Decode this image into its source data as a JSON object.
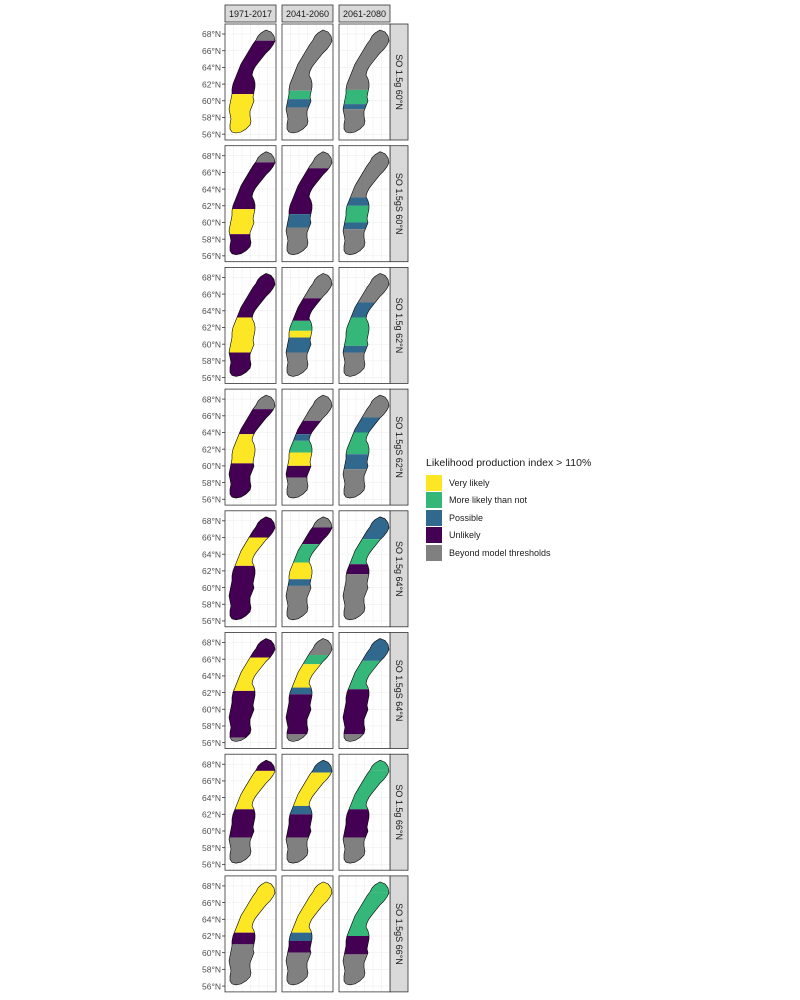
{
  "colors": {
    "very_likely": "#FDE725",
    "more_likely": "#35B779",
    "possible": "#31688E",
    "unlikely": "#440154",
    "beyond": "#808080"
  },
  "legend": {
    "title": "Likelihood production index > 110%",
    "items": [
      {
        "label": "Very likely",
        "color": "#FDE725"
      },
      {
        "label": "More likely than not",
        "color": "#35B779"
      },
      {
        "label": "Possible",
        "color": "#31688E"
      },
      {
        "label": "Unlikely",
        "color": "#440154"
      },
      {
        "label": "Beyond model thresholds",
        "color": "#808080"
      }
    ]
  },
  "chart_data": {
    "type": "map",
    "columns": [
      "1971-2017",
      "2041-2060",
      "2061-2080"
    ],
    "rows": [
      "SO 1.5g 60°N",
      "SO 1.5gS 60°N",
      "SO 1.5g 62°N",
      "SO 1.5gS 62°N",
      "SO 1.5g 64°N",
      "SO 1.5gS 64°N",
      "SO 1.5g 66°N",
      "SO 1.5gS 66°N"
    ],
    "y_tick_labels": [
      "68°N",
      "66°N",
      "64°N",
      "62°N",
      "60°N",
      "58°N",
      "56°N"
    ],
    "y_tick_values": [
      68,
      66,
      64,
      62,
      60,
      58,
      56
    ],
    "lat_range": [
      55.3,
      69.2
    ],
    "categories": [
      "Very likely",
      "More likely than not",
      "Possible",
      "Unlikely",
      "Beyond model thresholds"
    ],
    "panels": [
      [
        {
          "bands": [
            [
              67.2,
              "beyond"
            ],
            [
              60.8,
              "unlikely"
            ],
            [
              56,
              "very_likely"
            ]
          ]
        },
        {
          "bands": [
            [
              61.2,
              "beyond"
            ],
            [
              60.2,
              "more_likely"
            ],
            [
              59.2,
              "possible"
            ],
            [
              56,
              "beyond"
            ]
          ]
        },
        {
          "bands": [
            [
              61.3,
              "beyond"
            ],
            [
              59.6,
              "more_likely"
            ],
            [
              59.0,
              "possible"
            ],
            [
              56,
              "beyond"
            ]
          ]
        }
      ],
      [
        {
          "bands": [
            [
              67.2,
              "beyond"
            ],
            [
              61.6,
              "unlikely"
            ],
            [
              58.6,
              "very_likely"
            ],
            [
              56,
              "unlikely"
            ],
            [
              55.3,
              "very_likely"
            ]
          ]
        },
        {
          "bands": [
            [
              66.5,
              "beyond"
            ],
            [
              61.0,
              "unlikely"
            ],
            [
              59.4,
              "possible"
            ],
            [
              56,
              "beyond"
            ]
          ]
        },
        {
          "bands": [
            [
              63.0,
              "beyond"
            ],
            [
              62.0,
              "possible"
            ],
            [
              60.0,
              "more_likely"
            ],
            [
              59.2,
              "possible"
            ],
            [
              56,
              "beyond"
            ]
          ]
        }
      ],
      [
        {
          "bands": [
            [
              63.2,
              "unlikely"
            ],
            [
              59.0,
              "very_likely"
            ],
            [
              56,
              "unlikely"
            ]
          ]
        },
        {
          "bands": [
            [
              65.5,
              "beyond"
            ],
            [
              62.8,
              "unlikely"
            ],
            [
              61.6,
              "more_likely"
            ],
            [
              60.8,
              "very_likely"
            ],
            [
              59.0,
              "possible"
            ],
            [
              56,
              "beyond"
            ]
          ]
        },
        {
          "bands": [
            [
              65.0,
              "beyond"
            ],
            [
              63.2,
              "possible"
            ],
            [
              59.8,
              "more_likely"
            ],
            [
              59.0,
              "possible"
            ],
            [
              56,
              "beyond"
            ]
          ]
        }
      ],
      [
        {
          "bands": [
            [
              66.8,
              "beyond"
            ],
            [
              63.8,
              "unlikely"
            ],
            [
              60.3,
              "very_likely"
            ],
            [
              56,
              "unlikely"
            ]
          ]
        },
        {
          "bands": [
            [
              65.4,
              "beyond"
            ],
            [
              63.8,
              "unlikely"
            ],
            [
              63.0,
              "possible"
            ],
            [
              61.6,
              "more_likely"
            ],
            [
              60.0,
              "very_likely"
            ],
            [
              58.6,
              "unlikely"
            ],
            [
              56,
              "beyond"
            ]
          ]
        },
        {
          "bands": [
            [
              65.8,
              "beyond"
            ],
            [
              64.0,
              "possible"
            ],
            [
              61.4,
              "more_likely"
            ],
            [
              59.6,
              "possible"
            ],
            [
              56,
              "beyond"
            ]
          ]
        }
      ],
      [
        {
          "bands": [
            [
              66.0,
              "unlikely"
            ],
            [
              62.6,
              "very_likely"
            ],
            [
              56,
              "unlikely"
            ]
          ]
        },
        {
          "bands": [
            [
              67.2,
              "beyond"
            ],
            [
              65.2,
              "unlikely"
            ],
            [
              63.0,
              "more_likely"
            ],
            [
              61.0,
              "very_likely"
            ],
            [
              60.2,
              "possible"
            ],
            [
              56,
              "beyond"
            ]
          ]
        },
        {
          "bands": [
            [
              65.8,
              "possible"
            ],
            [
              62.8,
              "more_likely"
            ],
            [
              61.6,
              "unlikely"
            ],
            [
              56,
              "beyond"
            ]
          ]
        }
      ],
      [
        {
          "bands": [
            [
              66.2,
              "unlikely"
            ],
            [
              62.2,
              "very_likely"
            ],
            [
              56.6,
              "unlikely"
            ],
            [
              55.3,
              "beyond"
            ]
          ]
        },
        {
          "bands": [
            [
              66.5,
              "beyond"
            ],
            [
              65.4,
              "more_likely"
            ],
            [
              62.6,
              "very_likely"
            ],
            [
              61.8,
              "possible"
            ],
            [
              57.0,
              "unlikely"
            ],
            [
              55.3,
              "beyond"
            ]
          ]
        },
        {
          "bands": [
            [
              65.8,
              "possible"
            ],
            [
              62.4,
              "more_likely"
            ],
            [
              57.0,
              "unlikely"
            ],
            [
              55.3,
              "beyond"
            ]
          ]
        }
      ],
      [
        {
          "bands": [
            [
              67.2,
              "unlikely"
            ],
            [
              62.6,
              "very_likely"
            ],
            [
              59.2,
              "unlikely"
            ],
            [
              56,
              "beyond"
            ]
          ]
        },
        {
          "bands": [
            [
              67.0,
              "possible"
            ],
            [
              63.0,
              "very_likely"
            ],
            [
              62.0,
              "possible"
            ],
            [
              59.2,
              "unlikely"
            ],
            [
              56,
              "beyond"
            ]
          ]
        },
        {
          "bands": [
            [
              67.2,
              "more_likely"
            ],
            [
              62.6,
              "more_likely"
            ],
            [
              59.2,
              "unlikely"
            ],
            [
              56,
              "beyond"
            ]
          ]
        }
      ],
      [
        {
          "bands": [
            [
              62.4,
              "very_likely"
            ],
            [
              61.0,
              "unlikely"
            ],
            [
              56,
              "beyond"
            ]
          ]
        },
        {
          "bands": [
            [
              66.5,
              "very_likely"
            ],
            [
              62.4,
              "very_likely"
            ],
            [
              61.4,
              "possible"
            ],
            [
              60.0,
              "unlikely"
            ],
            [
              56,
              "beyond"
            ]
          ]
        },
        {
          "bands": [
            [
              67.2,
              "more_likely"
            ],
            [
              62.0,
              "more_likely"
            ],
            [
              59.8,
              "unlikely"
            ],
            [
              56,
              "beyond"
            ]
          ]
        }
      ]
    ]
  }
}
